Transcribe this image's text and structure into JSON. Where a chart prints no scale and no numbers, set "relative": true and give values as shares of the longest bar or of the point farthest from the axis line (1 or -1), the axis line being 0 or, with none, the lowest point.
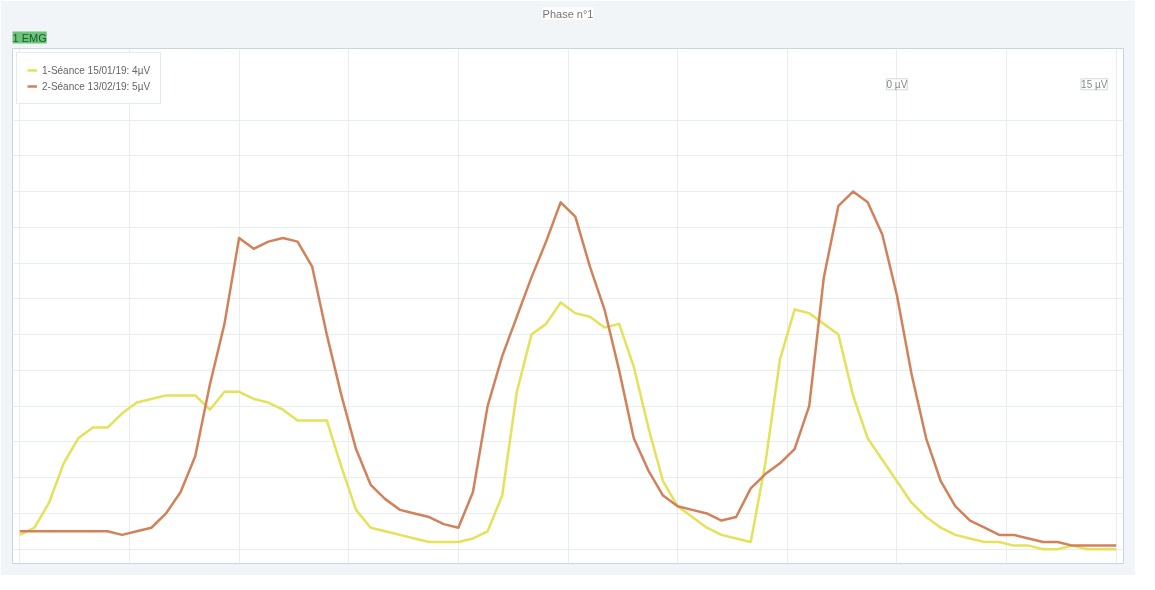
{
  "chart_data": {
    "type": "line",
    "title": "Phase n°1",
    "subtitle": "1 EMG",
    "relative": true,
    "categories": [
      null,
      null,
      null,
      null,
      null,
      null,
      null,
      null,
      null,
      null,
      null,
      null,
      null,
      null,
      null,
      null,
      null,
      null,
      null,
      null,
      null,
      null,
      null,
      null,
      null,
      null,
      null,
      null,
      null,
      null,
      null,
      null,
      null,
      null,
      null,
      null,
      null,
      null,
      null,
      null,
      null,
      null,
      null,
      null,
      null,
      null,
      null,
      null,
      null,
      null,
      null,
      null,
      null,
      null,
      null,
      null,
      null,
      null,
      null,
      null,
      null,
      null,
      null,
      null,
      null,
      null,
      null,
      null,
      null,
      null,
      null,
      null,
      null,
      null,
      null,
      null
    ],
    "series": [
      {
        "name": "1-Séance 15/01/19: 4µV",
        "color": "#e3e25a",
        "values": [
          0.04,
          0.06,
          0.13,
          0.24,
          0.31,
          0.34,
          0.34,
          0.38,
          0.41,
          0.42,
          0.43,
          0.43,
          0.43,
          0.39,
          0.44,
          0.44,
          0.42,
          0.41,
          0.39,
          0.36,
          0.36,
          0.36,
          0.23,
          0.11,
          0.06,
          0.05,
          0.04,
          0.03,
          0.02,
          0.02,
          0.02,
          0.03,
          0.05,
          0.15,
          0.44,
          0.6,
          0.63,
          0.69,
          0.66,
          0.65,
          0.62,
          0.63,
          0.51,
          0.34,
          0.19,
          0.12,
          0.09,
          0.06,
          0.04,
          0.03,
          0.02,
          0.24,
          0.53,
          0.67,
          0.66,
          0.63,
          0.6,
          0.43,
          0.31,
          0.25,
          0.19,
          0.13,
          0.09,
          0.06,
          0.04,
          0.03,
          0.02,
          0.02,
          0.01,
          0.01,
          0.0,
          0.0,
          0.01,
          0.0,
          0.0,
          0.0
        ]
      },
      {
        "name": "2-Séance 13/02/19: 5µV",
        "color": "#d2825a",
        "values": [
          0.05,
          0.05,
          0.05,
          0.05,
          0.05,
          0.05,
          0.05,
          0.04,
          0.05,
          0.06,
          0.1,
          0.16,
          0.26,
          0.46,
          0.63,
          0.87,
          0.84,
          0.86,
          0.87,
          0.86,
          0.79,
          0.6,
          0.43,
          0.28,
          0.18,
          0.14,
          0.11,
          0.1,
          0.09,
          0.07,
          0.06,
          0.16,
          0.4,
          0.54,
          0.65,
          0.76,
          0.86,
          0.97,
          0.93,
          0.79,
          0.67,
          0.5,
          0.31,
          0.22,
          0.15,
          0.12,
          0.11,
          0.1,
          0.08,
          0.09,
          0.17,
          0.21,
          0.24,
          0.28,
          0.4,
          0.76,
          0.96,
          1.0,
          0.97,
          0.88,
          0.71,
          0.49,
          0.31,
          0.19,
          0.12,
          0.08,
          0.06,
          0.04,
          0.04,
          0.03,
          0.02,
          0.02,
          0.01,
          0.01,
          0.01,
          0.01
        ]
      }
    ],
    "annotations": [
      "0 µV",
      "15 µV"
    ],
    "grid": true,
    "legend": "top left",
    "line_style": "solid"
  }
}
